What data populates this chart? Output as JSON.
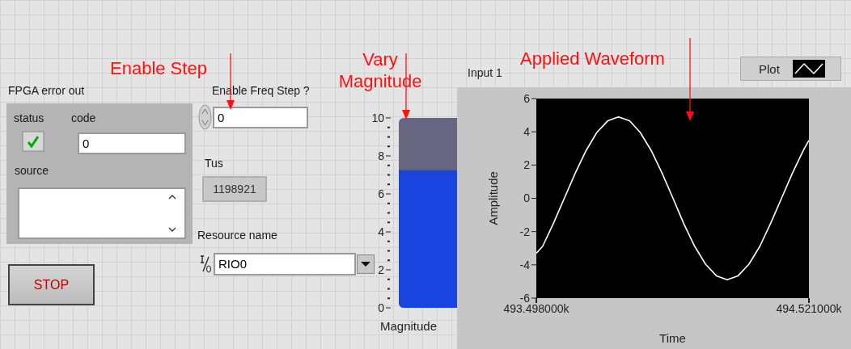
{
  "chart_data": [
    {
      "type": "other",
      "annotations": [
        "Enable Step",
        "FPGA error out",
        "status",
        "code",
        "0",
        "source",
        "Enable Freq Step ?",
        "0",
        "Tus",
        "1198921",
        "Resource name",
        "RIO0",
        "STOP"
      ]
    },
    {
      "type": "bar",
      "categories": [
        null
      ],
      "values": [
        7.25
      ],
      "color": "#1a44e0",
      "xlabel": "Magnitude",
      "ylim": [
        0,
        10
      ],
      "yticks": [
        0,
        {
          "value": 0.5,
          "label": null
        },
        {
          "value": 1,
          "label": null
        },
        {
          "value": 1.5,
          "label": null
        },
        2,
        {
          "value": 2.5,
          "label": null
        },
        {
          "value": 3,
          "label": null
        },
        {
          "value": 3.5,
          "label": null
        },
        4,
        {
          "value": 4.5,
          "label": null
        },
        {
          "value": 5,
          "label": null
        },
        {
          "value": 5.5,
          "label": null
        },
        6,
        {
          "value": 6.5,
          "label": null
        },
        {
          "value": 7,
          "label": null
        },
        {
          "value": 7.5,
          "label": null
        },
        8,
        {
          "value": 8.5,
          "label": null
        },
        {
          "value": 9,
          "label": null
        },
        {
          "value": 9.5,
          "label": null
        },
        10
      ],
      "annotations": [
        "Vary Magnitude"
      ]
    },
    {
      "type": "line",
      "title": "Input 1",
      "xlabel": "Time",
      "ylabel": "Amplitude",
      "legend": "top right",
      "annotations": [
        "Applied Waveform"
      ],
      "x": [
        493.498,
        493.522,
        493.562,
        493.603,
        493.644,
        493.685,
        493.725,
        493.766,
        493.807,
        493.848,
        493.888,
        493.929,
        493.97,
        494.011,
        494.051,
        494.092,
        494.133,
        494.174,
        494.214,
        494.255,
        494.296,
        494.337,
        494.377,
        494.418,
        494.459,
        494.5,
        494.521
      ],
      "series": [
        {
          "name": "Plot",
          "color": "#ffffff",
          "values": [
            -3.3,
            -2.88,
            -1.51,
            0,
            1.51,
            2.88,
            3.96,
            4.66,
            4.9,
            4.66,
            3.96,
            2.88,
            1.51,
            0,
            -1.51,
            -2.88,
            -3.96,
            -4.66,
            -4.9,
            -4.66,
            -3.96,
            -2.88,
            -1.51,
            0,
            1.51,
            2.88,
            3.49
          ]
        }
      ],
      "xlim": [
        493.498,
        494.521
      ],
      "xticks": [
        {
          "value": 493.498,
          "label": "493.498000k"
        },
        {
          "value": 494.521,
          "label": "494.521000k"
        }
      ],
      "ylim": [
        -6,
        6
      ],
      "yticks": [
        -6,
        -4,
        -2,
        0,
        2,
        4,
        6
      ]
    }
  ]
}
